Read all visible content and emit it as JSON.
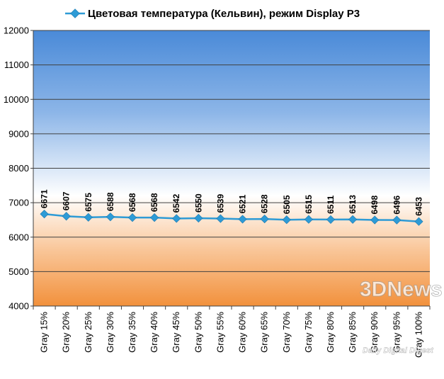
{
  "chart_data": {
    "type": "line",
    "legend": "top",
    "grid": true,
    "ylim": [
      4000,
      12000
    ],
    "yticks": [
      4000,
      5000,
      6000,
      7000,
      8000,
      9000,
      10000,
      11000,
      12000
    ],
    "categories": [
      "Gray 15%",
      "Gray 20%",
      "Gray 25%",
      "Gray 30%",
      "Gray 35%",
      "Gray 40%",
      "Gray 45%",
      "Gray 50%",
      "Gray 55%",
      "Gray 60%",
      "Gray 65%",
      "Gray 70%",
      "Gray 75%",
      "Gray 80%",
      "Gray 85%",
      "Gray 90%",
      "Gray 95%",
      "Gray 100%"
    ],
    "series": [
      {
        "name": "Цветовая температура (Кельвин), режим Display P3",
        "color": "#2E9BD6",
        "values": [
          6671,
          6607,
          6575,
          6588,
          6568,
          6568,
          6542,
          6550,
          6539,
          6521,
          6528,
          6505,
          6515,
          6511,
          6513,
          6498,
          6496,
          6453
        ]
      }
    ]
  },
  "colors": {
    "bg_top": "#4A8AD8",
    "bg_mid": "#FFFFFF",
    "bg_bottom": "#F2913C",
    "gridline": "#404040",
    "line": "#2E9BD6"
  },
  "watermark": {
    "logo": "3DNews",
    "tagline": "Daily Digital Digest"
  }
}
